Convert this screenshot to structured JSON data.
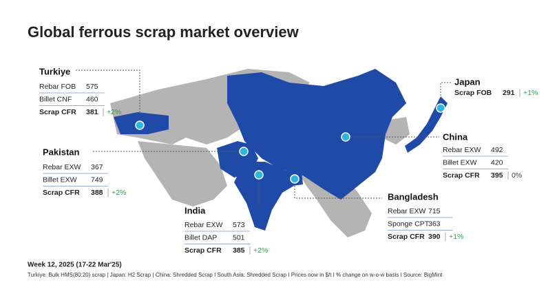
{
  "title": "Global ferrous scrap market overview",
  "panels": [
    {
      "country": "Turkiye",
      "rows": [
        {
          "label": "Rebar FOB",
          "value": 575
        },
        {
          "label": "Billet CNF",
          "value": 460
        },
        {
          "label": "Scrap CFR",
          "value": 381,
          "change": "+2%"
        }
      ]
    },
    {
      "country": "Pakistan",
      "rows": [
        {
          "label": "Rebar EXW",
          "value": 367
        },
        {
          "label": "Billet EXW",
          "value": 749
        },
        {
          "label": "Scrap CFR",
          "value": 388,
          "change": "+2%"
        }
      ]
    },
    {
      "country": "India",
      "rows": [
        {
          "label": "Rebar EXW",
          "value": 573
        },
        {
          "label": "Billet DAP",
          "value": 501
        },
        {
          "label": "Scrap CFR",
          "value": 385,
          "change": "+2%"
        }
      ]
    },
    {
      "country": "Japan",
      "rows": [
        {
          "label": "Scrap FOB",
          "value": 291,
          "change": "+1%"
        }
      ]
    },
    {
      "country": "China",
      "rows": [
        {
          "label": "Rebar EXW",
          "value": 492
        },
        {
          "label": "Billet EXW",
          "value": 420
        },
        {
          "label": "Scrap CFR",
          "value": 395,
          "change": "0%"
        }
      ]
    },
    {
      "country": "Bangladesh",
      "rows": [
        {
          "label": "Rebar EXW",
          "value": 715
        },
        {
          "label": "Sponge CPT",
          "value": 363
        },
        {
          "label": "Scrap CFR",
          "value": 390,
          "change": "+1%"
        }
      ]
    }
  ],
  "footer": {
    "week": "Week 12, 2025 (17-22 Mar'25)",
    "note": "Turkiye: Bulk HMS(80:20) scrap | Japan: H2 Scrap | China: Shredded Scrap  I  South Asia: Shredded Scrap  I  Prices now in $/t  I  % change on w-o-w basis  I  Source: BigMint"
  }
}
